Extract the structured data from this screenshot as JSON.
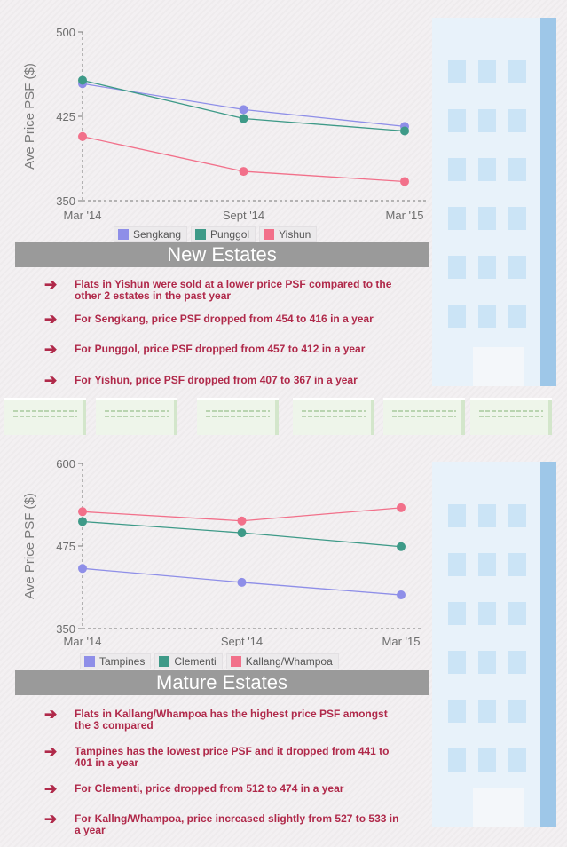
{
  "colors": {
    "sengkang": "#8e8ee8",
    "punggol": "#3e9a88",
    "yishun": "#f2708a",
    "banner": "#9a9a9a",
    "bullet_text": "#b0294a"
  },
  "charts": {
    "new": {
      "type": "line",
      "ylabel": "Ave Price PSF ($)",
      "x": [
        "Mar '14",
        "Sept '14",
        "Mar '15"
      ],
      "ylim": [
        350,
        500
      ],
      "yticks": [
        350,
        425,
        500
      ],
      "series": [
        {
          "name": "Sengkang",
          "values": [
            454,
            431,
            416
          ],
          "color": "#8e8ee8"
        },
        {
          "name": "Punggol",
          "values": [
            457,
            423,
            412
          ],
          "color": "#3e9a88"
        },
        {
          "name": "Yishun",
          "values": [
            407,
            376,
            367
          ],
          "color": "#f2708a"
        }
      ]
    },
    "mature": {
      "type": "line",
      "ylabel": "Ave Price PSF ($)",
      "x": [
        "Mar '14",
        "Sept '14",
        "Mar '15"
      ],
      "ylim": [
        350,
        600
      ],
      "yticks": [
        350,
        475,
        600
      ],
      "series": [
        {
          "name": "Tampines",
          "values": [
            441,
            420,
            401
          ],
          "color": "#8e8ee8"
        },
        {
          "name": "Clementi",
          "values": [
            512,
            495,
            474
          ],
          "color": "#3e9a88"
        },
        {
          "name": "Kallang/Whampoa",
          "values": [
            527,
            513,
            533
          ],
          "color": "#f2708a"
        }
      ]
    }
  },
  "chart_data": [
    {
      "type": "line",
      "ylabel": "Ave Price PSF ($)",
      "x": [
        "Mar '14",
        "Sept '14",
        "Mar '15"
      ],
      "ylim": [
        350,
        500
      ],
      "series": [
        {
          "name": "Sengkang",
          "values": [
            454,
            431,
            416
          ]
        },
        {
          "name": "Punggol",
          "values": [
            457,
            423,
            412
          ]
        },
        {
          "name": "Yishun",
          "values": [
            407,
            376,
            367
          ]
        }
      ],
      "legend": "bottom"
    },
    {
      "type": "line",
      "ylabel": "Ave Price PSF ($)",
      "x": [
        "Mar '14",
        "Sept '14",
        "Mar '15"
      ],
      "ylim": [
        350,
        600
      ],
      "series": [
        {
          "name": "Tampines",
          "values": [
            441,
            420,
            401
          ]
        },
        {
          "name": "Clementi",
          "values": [
            512,
            495,
            474
          ]
        },
        {
          "name": "Kallang/Whampoa",
          "values": [
            527,
            513,
            533
          ]
        }
      ],
      "legend": "bottom"
    }
  ],
  "sections": {
    "new": {
      "title": "New Estates",
      "points": [
        "Flats in Yishun were sold at a lower price PSF compared to the other 2 estates in the past year",
        "For Sengkang, price PSF dropped from 454 to 416 in a year",
        "For Punggol, price PSF dropped from 457 to 412 in a year",
        "For Yishun, price PSF dropped from 407 to 367 in a year"
      ]
    },
    "mature": {
      "title": "Mature Estates",
      "points": [
        "Flats in Kallang/Whampoa has the highest price PSF amongst the 3 compared",
        "Tampines has the lowest price PSF and it dropped from 441 to 401 in a year",
        "For Clementi, price dropped from 512 to 474 in a year",
        "For Kallng/Whampoa, price increased slightly from 527 to 533 in a year"
      ]
    }
  },
  "icons": {
    "bullet": "right-arrow-icon"
  }
}
